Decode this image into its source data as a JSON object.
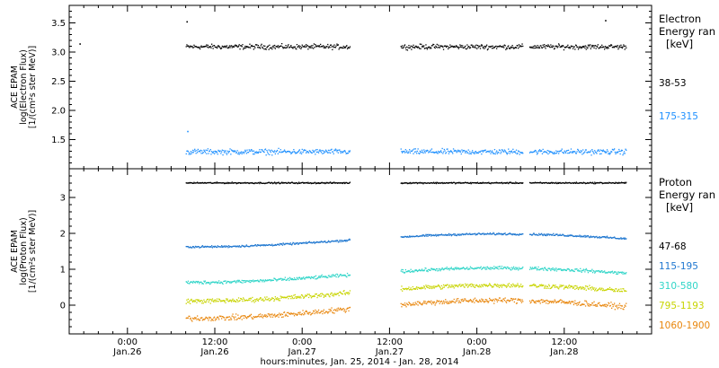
{
  "chart_data": [
    {
      "type": "scatter",
      "id": "electron",
      "ylabel_lines": [
        "ACE EPAM",
        "log(Electron Flux)",
        "[1/(cm²s ster MeV)]"
      ],
      "ylim": [
        1.0,
        3.8
      ],
      "yticks": [
        1.5,
        2.0,
        2.5,
        3.0,
        3.5
      ],
      "ytick_labels": [
        "1.5",
        "2.0",
        "2.5",
        "3.0",
        "3.5"
      ],
      "legend": {
        "title": "Electron",
        "subtitle": "Energy ran",
        "unit": "[keV]"
      },
      "series": [
        {
          "name": "38-53",
          "color": "#000000",
          "level": 3.1,
          "noise": 0.045,
          "drift": 0.0
        },
        {
          "name": "175-315",
          "color": "#1e90ff",
          "level": 1.3,
          "noise": 0.05,
          "drift": 0.0
        }
      ],
      "outliers": [
        {
          "x": -6.6,
          "y": 3.15
        },
        {
          "x": 8.1,
          "y": 3.53
        },
        {
          "x": 8.2,
          "y": 1.65
        },
        {
          "x": 65.6,
          "y": 3.55
        }
      ]
    },
    {
      "type": "scatter",
      "id": "proton",
      "ylabel_lines": [
        "ACE EPAM",
        "log(Proton Flux)",
        "[1/(cm²s ster MeV)]"
      ],
      "ylim": [
        -0.8,
        3.8
      ],
      "yticks": [
        0,
        1,
        2,
        3
      ],
      "ytick_labels": [
        "0",
        "1",
        "2",
        "3"
      ],
      "legend": {
        "title": "Proton",
        "subtitle": "Energy ran",
        "unit": "[keV]"
      },
      "series": [
        {
          "name": "47-68",
          "color": "#000000",
          "level": 3.42,
          "noise": 0.02,
          "drift": 0.0
        },
        {
          "name": "115-195",
          "color": "#1f77d0",
          "level": 1.82,
          "noise": 0.03,
          "drift": 0.18
        },
        {
          "name": "310-580",
          "color": "#30d5c8",
          "level": 0.85,
          "noise": 0.05,
          "drift": 0.2
        },
        {
          "name": "795-1193",
          "color": "#c8d400",
          "level": 0.35,
          "noise": 0.07,
          "drift": 0.22
        },
        {
          "name": "1060-1900",
          "color": "#e8860c",
          "level": -0.1,
          "noise": 0.08,
          "drift": 0.25
        }
      ]
    }
  ],
  "x_axis": {
    "xlim": [
      -8,
      72
    ],
    "data_segments": [
      [
        8,
        30.5
      ],
      [
        37.5,
        54.3
      ],
      [
        55.2,
        68.5
      ]
    ],
    "major_ticks": [
      0,
      12,
      24,
      36,
      48,
      60
    ],
    "tick_labels": [
      {
        "x": 0,
        "time": "0:00",
        "date": "Jan.26"
      },
      {
        "x": 12,
        "time": "12:00",
        "date": "Jan.26"
      },
      {
        "x": 24,
        "time": "0:00",
        "date": "Jan.27"
      },
      {
        "x": 36,
        "time": "12:00",
        "date": "Jan.27"
      },
      {
        "x": 48,
        "time": "0:00",
        "date": "Jan.28"
      },
      {
        "x": 60,
        "time": "12:00",
        "date": "Jan.28"
      }
    ],
    "title": "hours:minutes, Jan. 25, 2014 - Jan. 28, 2014"
  }
}
